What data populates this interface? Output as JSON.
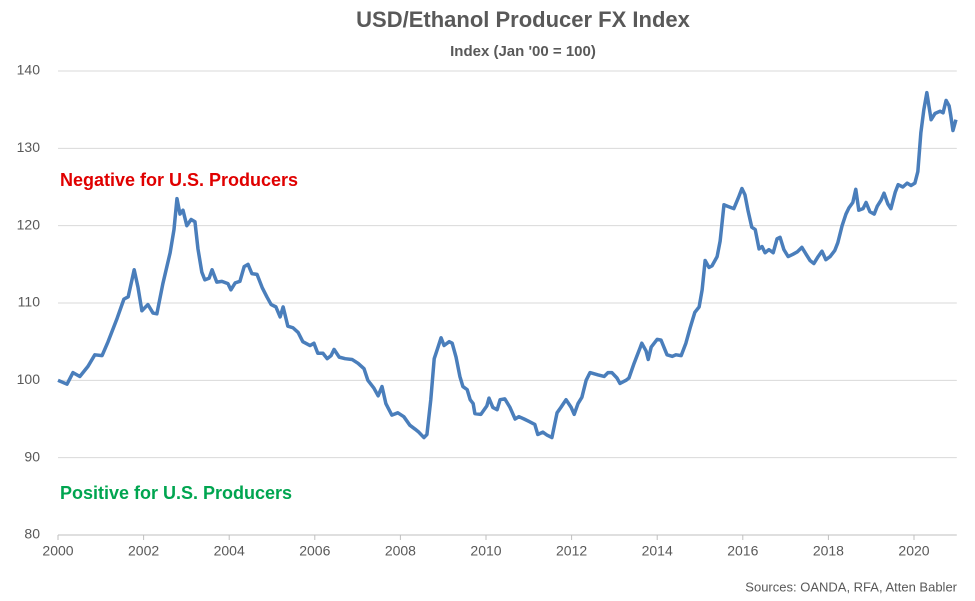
{
  "chart_data": {
    "type": "line",
    "title": "USD/Ethanol Producer FX Index",
    "subtitle": "Index (Jan '00 = 100)",
    "source": "Sources: OANDA, RFA, Atten Babler",
    "annotations": [
      {
        "text": "Negative for U.S. Producers",
        "color": "#e00000"
      },
      {
        "text": "Positive for U.S. Producers",
        "color": "#00a550"
      }
    ],
    "xlim": [
      2000,
      2021
    ],
    "xticks": [
      2000,
      2002,
      2004,
      2006,
      2008,
      2010,
      2012,
      2014,
      2016,
      2018,
      2020
    ],
    "ylim": [
      80,
      140
    ],
    "yticks": [
      80,
      90,
      100,
      110,
      120,
      130,
      140
    ],
    "grid": true,
    "x": [
      2000.0,
      2000.21,
      2000.35,
      2000.51,
      2000.7,
      2000.86,
      2001.03,
      2001.17,
      2001.38,
      2001.54,
      2001.64,
      2001.78,
      2001.87,
      2001.96,
      2002.1,
      2002.22,
      2002.31,
      2002.45,
      2002.62,
      2002.71,
      2002.78,
      2002.85,
      2002.92,
      2003.01,
      2003.11,
      2003.2,
      2003.27,
      2003.36,
      2003.43,
      2003.53,
      2003.6,
      2003.71,
      2003.83,
      2003.97,
      2004.04,
      2004.14,
      2004.25,
      2004.35,
      2004.44,
      2004.53,
      2004.65,
      2004.77,
      2004.88,
      2004.98,
      2005.09,
      2005.19,
      2005.26,
      2005.37,
      2005.49,
      2005.61,
      2005.72,
      2005.89,
      2005.98,
      2006.07,
      2006.19,
      2006.29,
      2006.38,
      2006.45,
      2006.57,
      2006.71,
      2006.87,
      2007.01,
      2007.15,
      2007.24,
      2007.38,
      2007.48,
      2007.57,
      2007.66,
      2007.8,
      2007.94,
      2008.08,
      2008.22,
      2008.34,
      2008.43,
      2008.55,
      2008.62,
      2008.71,
      2008.79,
      2008.88,
      2008.95,
      2009.02,
      2009.14,
      2009.21,
      2009.3,
      2009.39,
      2009.46,
      2009.56,
      2009.63,
      2009.7,
      2009.74,
      2009.88,
      2010.02,
      2010.07,
      2010.16,
      2010.26,
      2010.33,
      2010.44,
      2010.56,
      2010.68,
      2010.77,
      2010.89,
      2011.0,
      2011.14,
      2011.21,
      2011.33,
      2011.43,
      2011.54,
      2011.66,
      2011.75,
      2011.87,
      2011.99,
      2012.06,
      2012.15,
      2012.24,
      2012.34,
      2012.43,
      2012.62,
      2012.76,
      2012.85,
      2012.94,
      2013.06,
      2013.13,
      2013.27,
      2013.34,
      2013.46,
      2013.6,
      2013.64,
      2013.74,
      2013.79,
      2013.86,
      2014.0,
      2014.09,
      2014.23,
      2014.35,
      2014.44,
      2014.56,
      2014.67,
      2014.77,
      2014.88,
      2014.98,
      2015.05,
      2015.12,
      2015.21,
      2015.28,
      2015.4,
      2015.47,
      2015.56,
      2015.65,
      2015.79,
      2015.91,
      2015.98,
      2016.05,
      2016.12,
      2016.21,
      2016.29,
      2016.38,
      2016.45,
      2016.52,
      2016.61,
      2016.71,
      2016.8,
      2016.87,
      2016.96,
      2017.06,
      2017.17,
      2017.27,
      2017.38,
      2017.48,
      2017.57,
      2017.66,
      2017.76,
      2017.85,
      2017.94,
      2018.04,
      2018.15,
      2018.22,
      2018.32,
      2018.41,
      2018.48,
      2018.57,
      2018.64,
      2018.71,
      2018.81,
      2018.88,
      2018.97,
      2019.07,
      2019.14,
      2019.23,
      2019.3,
      2019.39,
      2019.46,
      2019.56,
      2019.63,
      2019.74,
      2019.84,
      2019.93,
      2020.02,
      2020.09,
      2020.16,
      2020.23,
      2020.3,
      2020.4,
      2020.49,
      2020.61,
      2020.68,
      2020.75,
      2020.82,
      2020.86,
      2020.91,
      2020.98
    ],
    "series": [
      {
        "name": "USD/Ethanol Producer FX Index",
        "color": "#4a7ebb",
        "values": [
          100,
          99.5,
          101,
          100.5,
          101.8,
          103.3,
          103.2,
          105,
          108,
          110.5,
          110.8,
          114.3,
          112,
          109,
          109.8,
          108.7,
          108.6,
          112.5,
          116.5,
          119.5,
          123.5,
          121.5,
          122,
          120,
          120.8,
          120.5,
          117,
          114,
          113,
          113.2,
          114.3,
          112.7,
          112.8,
          112.5,
          111.7,
          112.6,
          112.8,
          114.7,
          115,
          113.8,
          113.7,
          112,
          110.8,
          109.8,
          109.5,
          108.2,
          109.5,
          107,
          106.8,
          106.2,
          105,
          104.5,
          104.8,
          103.5,
          103.5,
          102.8,
          103.2,
          104,
          103,
          102.8,
          102.7,
          102.2,
          101.5,
          100,
          99,
          98,
          99.2,
          97,
          95.5,
          95.8,
          95.3,
          94.2,
          93.7,
          93.3,
          92.6,
          93,
          97.5,
          102.8,
          104.3,
          105.5,
          104.5,
          105,
          104.8,
          103,
          100.5,
          99.2,
          98.8,
          97.5,
          97,
          95.7,
          95.6,
          96.7,
          97.7,
          96.5,
          96.2,
          97.5,
          97.6,
          96.5,
          95,
          95.3,
          95,
          94.7,
          94.3,
          93,
          93.3,
          92.9,
          92.6,
          95.8,
          96.5,
          97.5,
          96.5,
          95.6,
          97,
          97.8,
          100,
          101,
          100.7,
          100.5,
          101,
          101,
          100.3,
          99.6,
          100,
          100.3,
          102.2,
          104.2,
          104.8,
          103.8,
          102.7,
          104.3,
          105.3,
          105.2,
          103.3,
          103.1,
          103.3,
          103.2,
          104.8,
          106.8,
          108.8,
          109.5,
          111.7,
          115.5,
          114.6,
          114.8,
          116,
          118,
          122.7,
          122.5,
          122.2,
          123.8,
          124.8,
          124,
          122,
          119.8,
          119.5,
          117,
          117.3,
          116.5,
          116.9,
          116.5,
          118.3,
          118.5,
          116.9,
          116,
          116.3,
          116.6,
          117.2,
          116.3,
          115.5,
          115.1,
          116,
          116.7,
          115.6,
          116,
          116.8,
          117.8,
          120,
          121.5,
          122.3,
          123,
          124.7,
          122,
          122.2,
          123,
          121.8,
          121.5,
          122.5,
          123.3,
          124.2,
          122.8,
          122.2,
          124.3,
          125.3,
          125,
          125.5,
          125.2,
          125.5,
          127,
          132,
          135,
          137.2,
          133.7,
          134.5,
          134.8,
          134.6,
          136.2,
          135.5,
          134.2,
          132.3,
          133.7
        ]
      }
    ]
  }
}
